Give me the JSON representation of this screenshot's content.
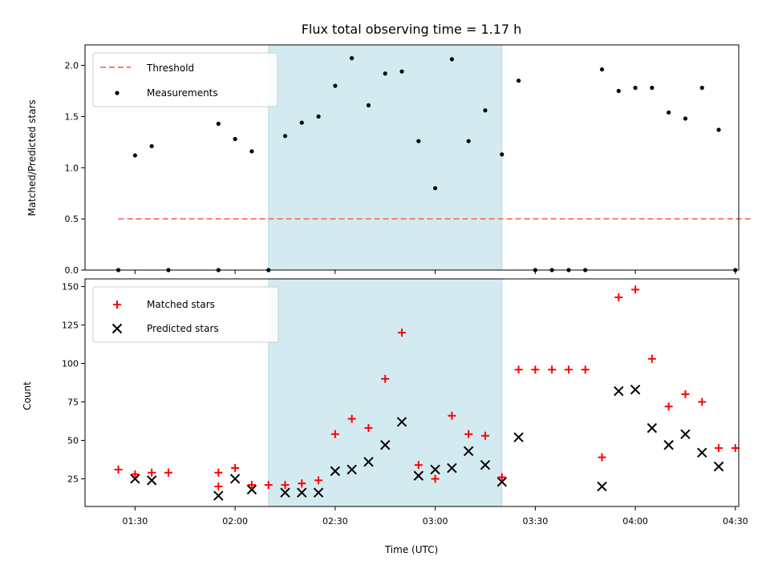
{
  "title": "Flux total observing time = 1.17 h",
  "xlabel": "Time (UTC)",
  "colors": {
    "shade": "#d3eaf0",
    "shade_edge": "#b8dde6",
    "threshold": "#ff7777",
    "measurement": "#000000",
    "matched": "#ff0000",
    "predicted": "#000000"
  },
  "chart_data": [
    {
      "type": "scatter",
      "panel": "top",
      "ylabel": "Matched/Predicted stars",
      "xlim_minutes": [
        75,
        271
      ],
      "ylim": [
        0,
        2.2
      ],
      "yticks": [
        0.0,
        0.5,
        1.0,
        1.5,
        2.0
      ],
      "ytick_labels": [
        "0.0",
        "0.5",
        "1.0",
        "1.5",
        "2.0"
      ],
      "shaded_span_minutes": [
        130,
        200
      ],
      "legend_location": "top-left",
      "threshold": {
        "name": "Threshold",
        "value": 0.5,
        "x_range_minutes": [
          85,
          275
        ]
      },
      "series": [
        {
          "name": "Measurements",
          "x_minutes": [
            85,
            90,
            95,
            100,
            115,
            115,
            120,
            125,
            130,
            135,
            140,
            145,
            150,
            155,
            160,
            165,
            170,
            175,
            180,
            185,
            190,
            195,
            200,
            205,
            210,
            215,
            220,
            225,
            230,
            235,
            240,
            245,
            250,
            255,
            260,
            265,
            270
          ],
          "values": [
            0.0,
            1.12,
            1.21,
            0.0,
            0.0,
            1.43,
            1.28,
            1.16,
            0.0,
            1.31,
            1.44,
            1.5,
            1.8,
            2.07,
            1.61,
            1.92,
            1.94,
            1.26,
            0.8,
            2.06,
            1.26,
            1.56,
            1.13,
            1.85,
            0.0,
            0.0,
            0.0,
            0.0,
            1.96,
            1.75,
            1.78,
            1.78,
            1.54,
            1.48,
            1.78,
            1.37,
            0.0
          ]
        }
      ]
    },
    {
      "type": "scatter",
      "panel": "bottom",
      "ylabel": "Count",
      "xlim_minutes": [
        75,
        271
      ],
      "ylim": [
        7,
        155
      ],
      "yticks": [
        25,
        50,
        75,
        100,
        125,
        150
      ],
      "ytick_labels": [
        "25",
        "50",
        "75",
        "100",
        "125",
        "150"
      ],
      "xticks_minutes": [
        90,
        120,
        150,
        180,
        210,
        240,
        270
      ],
      "xtick_labels": [
        "01:30",
        "02:00",
        "02:30",
        "03:00",
        "03:30",
        "04:00",
        "04:30"
      ],
      "shaded_span_minutes": [
        130,
        200
      ],
      "legend_location": "top-left",
      "series": [
        {
          "name": "Matched stars",
          "marker": "+",
          "x_minutes": [
            85,
            90,
            95,
            100,
            115,
            115,
            120,
            125,
            130,
            135,
            140,
            145,
            150,
            155,
            160,
            165,
            170,
            175,
            180,
            185,
            190,
            195,
            200,
            205,
            210,
            215,
            220,
            225,
            230,
            235,
            240,
            245,
            250,
            255,
            260,
            265,
            270
          ],
          "values": [
            31,
            28,
            29,
            29,
            29,
            20,
            32,
            21,
            21,
            21,
            22,
            24,
            54,
            64,
            58,
            90,
            120,
            34,
            25,
            66,
            54,
            53,
            26,
            96,
            96,
            96,
            96,
            96,
            39,
            143,
            148,
            103,
            72,
            80,
            75,
            45,
            45
          ]
        },
        {
          "name": "Predicted stars",
          "marker": "x",
          "x_minutes": [
            90,
            95,
            115,
            120,
            125,
            135,
            140,
            145,
            150,
            155,
            160,
            165,
            170,
            175,
            180,
            185,
            190,
            195,
            200,
            205,
            230,
            235,
            240,
            245,
            250,
            255,
            260,
            265
          ],
          "values": [
            25,
            24,
            14,
            25,
            18,
            16,
            16,
            16,
            30,
            31,
            36,
            47,
            62,
            27,
            31,
            32,
            43,
            34,
            23,
            52,
            20,
            82,
            83,
            58,
            47,
            54,
            42,
            33
          ]
        }
      ]
    }
  ]
}
